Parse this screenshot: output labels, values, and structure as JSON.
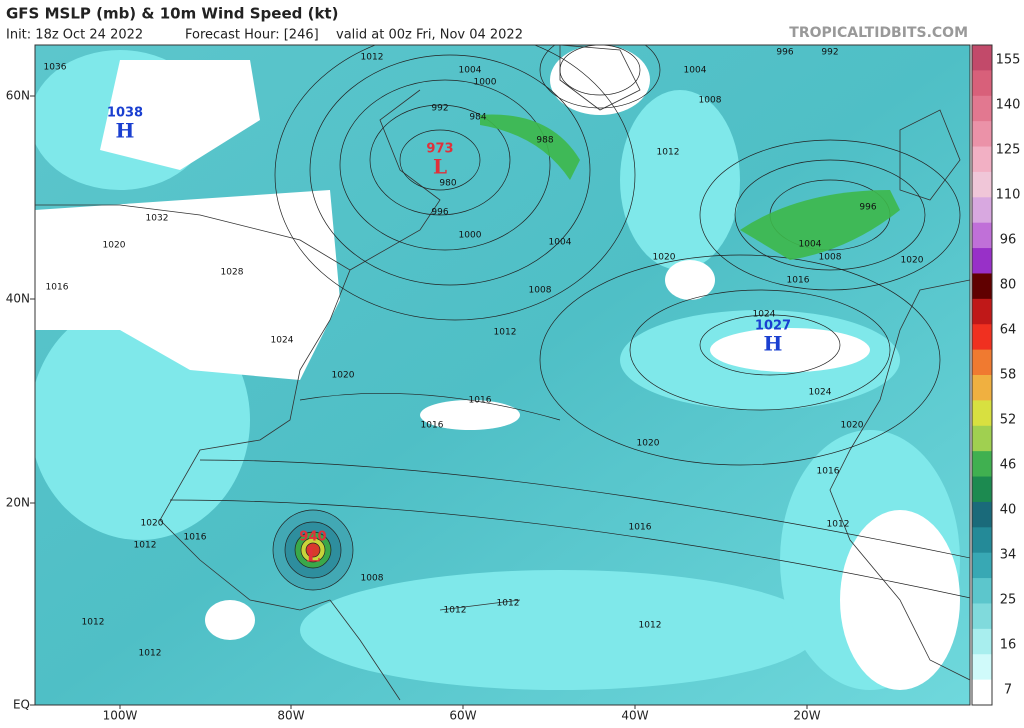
{
  "header": {
    "title": "GFS MSLP (mb) & 10m Wind Speed (kt)",
    "init": "Init: 18z Oct 24 2022",
    "forecast_hour": "Forecast Hour: [246]",
    "valid": "valid at 00z Fri, Nov 04 2022",
    "credit": "TROPICALTIDBITS.COM"
  },
  "map": {
    "lat_labels": [
      "60N",
      "40N",
      "20N",
      "EQ"
    ],
    "lon_labels": [
      "100W",
      "80W",
      "60W",
      "40W",
      "20W"
    ],
    "pressure_centers": [
      {
        "kind": "H",
        "value": "1038"
      },
      {
        "kind": "L",
        "value": "973"
      },
      {
        "kind": "L",
        "value": "940"
      },
      {
        "kind": "H",
        "value": "1027"
      }
    ],
    "isobar_labels": [
      "1036",
      "1012",
      "1004",
      "1000",
      "992",
      "984",
      "988",
      "980",
      "996",
      "1000",
      "1004",
      "1008",
      "1012",
      "1020",
      "1016",
      "1016",
      "1020",
      "1024",
      "1016",
      "1016",
      "1012",
      "1008",
      "1012",
      "1012",
      "1012",
      "1012",
      "1032",
      "1020",
      "1016",
      "1028",
      "1024",
      "1004",
      "1008",
      "1012",
      "1020",
      "1024",
      "996",
      "1004",
      "1008",
      "1016",
      "1020",
      "1020",
      "996",
      "992",
      "1016",
      "1020",
      "1012",
      "1012"
    ]
  },
  "colorbar": {
    "labels": [
      155,
      140,
      125,
      110,
      96,
      80,
      64,
      58,
      52,
      46,
      40,
      34,
      25,
      16,
      7
    ]
  }
}
